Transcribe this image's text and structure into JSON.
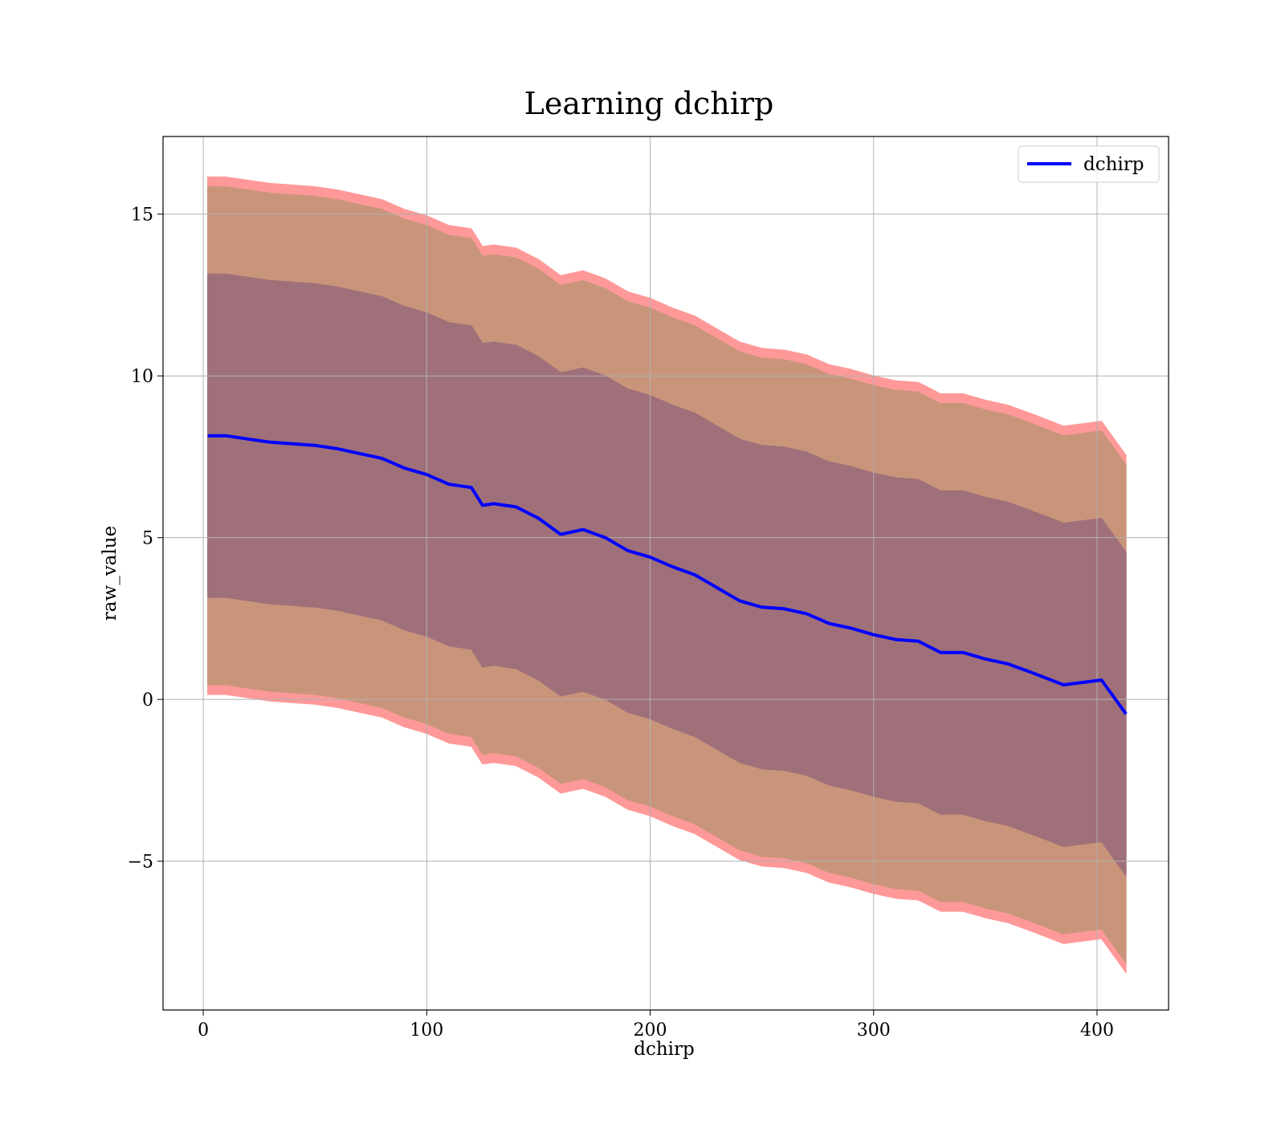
{
  "chart_data": {
    "type": "line",
    "title": "Learning dchirp",
    "xlabel": "dchirp",
    "ylabel": "raw_value",
    "xlim": [
      -18,
      432
    ],
    "ylim": [
      -9.6,
      17.4
    ],
    "xticks": [
      0,
      100,
      200,
      300,
      400
    ],
    "yticks": [
      -5,
      0,
      5,
      10,
      15
    ],
    "ytick_labels": [
      "−5",
      "0",
      "5",
      "10",
      "15"
    ],
    "grid": true,
    "legend_position": "top-right",
    "colors": {
      "line": "#0000ff",
      "outer_band": "#ff9999",
      "middle_band": "#c9957a",
      "inner_band": "#a0707a",
      "grid": "#b0b0b0"
    },
    "x": [
      2,
      10,
      20,
      30,
      40,
      50,
      60,
      70,
      80,
      90,
      100,
      110,
      120,
      125,
      130,
      140,
      150,
      160,
      170,
      180,
      190,
      200,
      210,
      220,
      230,
      240,
      250,
      260,
      270,
      280,
      290,
      300,
      310,
      320,
      330,
      340,
      350,
      360,
      370,
      385,
      402,
      413
    ],
    "series": [
      {
        "name": "dchirp",
        "values": [
          8.15,
          8.15,
          8.05,
          7.95,
          7.9,
          7.85,
          7.75,
          7.6,
          7.45,
          7.15,
          6.95,
          6.65,
          6.55,
          6.0,
          6.05,
          5.95,
          5.6,
          5.1,
          5.25,
          5.0,
          4.6,
          4.4,
          4.1,
          3.85,
          3.45,
          3.05,
          2.85,
          2.8,
          2.65,
          2.35,
          2.2,
          2.0,
          1.85,
          1.8,
          1.45,
          1.45,
          1.25,
          1.1,
          0.85,
          0.45,
          0.6,
          -0.45
        ]
      }
    ],
    "bands": [
      {
        "level": "outer",
        "upper": [
          16.15,
          16.15,
          16.05,
          15.95,
          15.9,
          15.85,
          15.75,
          15.6,
          15.45,
          15.15,
          14.95,
          14.65,
          14.55,
          14.0,
          14.05,
          13.95,
          13.6,
          13.1,
          13.25,
          13.0,
          12.6,
          12.4,
          12.1,
          11.85,
          11.45,
          11.05,
          10.85,
          10.8,
          10.65,
          10.35,
          10.2,
          10.0,
          9.85,
          9.8,
          9.45,
          9.45,
          9.25,
          9.1,
          8.85,
          8.45,
          8.6,
          7.55
        ],
        "lower": [
          0.15,
          0.15,
          0.05,
          -0.05,
          -0.1,
          -0.15,
          -0.25,
          -0.4,
          -0.55,
          -0.85,
          -1.05,
          -1.35,
          -1.45,
          -2.0,
          -1.95,
          -2.05,
          -2.4,
          -2.9,
          -2.75,
          -3.0,
          -3.4,
          -3.6,
          -3.9,
          -4.15,
          -4.55,
          -4.95,
          -5.15,
          -5.2,
          -5.35,
          -5.65,
          -5.8,
          -6.0,
          -6.15,
          -6.2,
          -6.55,
          -6.55,
          -6.75,
          -6.9,
          -7.15,
          -7.55,
          -7.4,
          -8.45
        ]
      },
      {
        "level": "middle",
        "upper": [
          15.85,
          15.85,
          15.75,
          15.65,
          15.6,
          15.55,
          15.45,
          15.3,
          15.15,
          14.85,
          14.65,
          14.35,
          14.25,
          13.7,
          13.75,
          13.65,
          13.3,
          12.8,
          12.95,
          12.7,
          12.3,
          12.1,
          11.8,
          11.55,
          11.15,
          10.75,
          10.55,
          10.5,
          10.35,
          10.05,
          9.9,
          9.7,
          9.55,
          9.5,
          9.15,
          9.15,
          8.95,
          8.8,
          8.55,
          8.15,
          8.3,
          7.25
        ],
        "lower": [
          0.45,
          0.45,
          0.35,
          0.25,
          0.2,
          0.15,
          0.05,
          -0.1,
          -0.25,
          -0.55,
          -0.75,
          -1.05,
          -1.15,
          -1.7,
          -1.65,
          -1.75,
          -2.1,
          -2.6,
          -2.45,
          -2.7,
          -3.1,
          -3.3,
          -3.6,
          -3.85,
          -4.25,
          -4.65,
          -4.85,
          -4.9,
          -5.05,
          -5.35,
          -5.5,
          -5.7,
          -5.85,
          -5.9,
          -6.25,
          -6.25,
          -6.45,
          -6.6,
          -6.85,
          -7.25,
          -7.1,
          -8.15
        ]
      },
      {
        "level": "inner",
        "upper": [
          13.15,
          13.15,
          13.05,
          12.95,
          12.9,
          12.85,
          12.75,
          12.6,
          12.45,
          12.15,
          11.95,
          11.65,
          11.55,
          11.0,
          11.05,
          10.95,
          10.6,
          10.1,
          10.25,
          10.0,
          9.6,
          9.4,
          9.1,
          8.85,
          8.45,
          8.05,
          7.85,
          7.8,
          7.65,
          7.35,
          7.2,
          7.0,
          6.85,
          6.8,
          6.45,
          6.45,
          6.25,
          6.1,
          5.85,
          5.45,
          5.6,
          4.55
        ],
        "lower": [
          3.15,
          3.15,
          3.05,
          2.95,
          2.9,
          2.85,
          2.75,
          2.6,
          2.45,
          2.15,
          1.95,
          1.65,
          1.55,
          1.0,
          1.05,
          0.95,
          0.6,
          0.1,
          0.25,
          0.0,
          -0.4,
          -0.6,
          -0.9,
          -1.15,
          -1.55,
          -1.95,
          -2.15,
          -2.2,
          -2.35,
          -2.65,
          -2.8,
          -3.0,
          -3.15,
          -3.2,
          -3.55,
          -3.55,
          -3.75,
          -3.9,
          -4.15,
          -4.55,
          -4.4,
          -5.45
        ]
      }
    ]
  }
}
